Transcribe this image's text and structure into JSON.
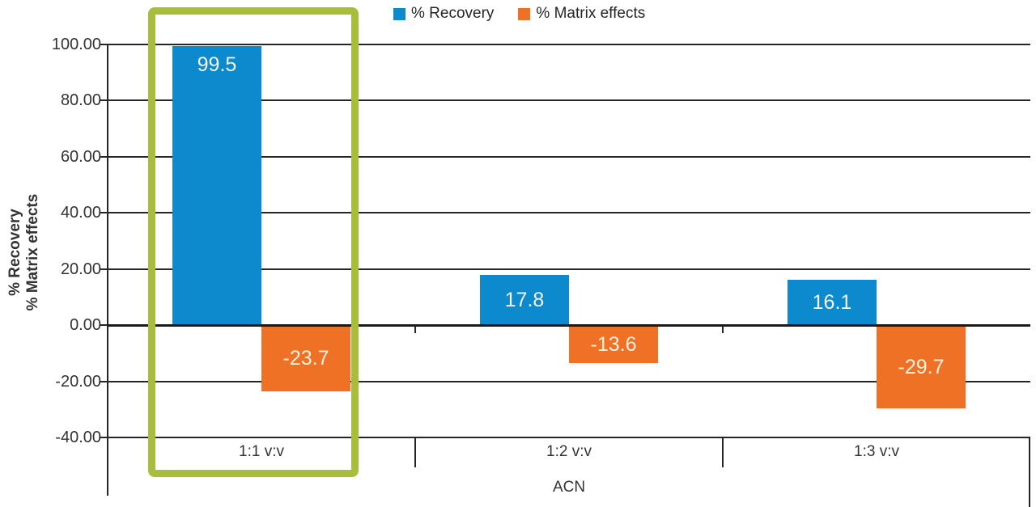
{
  "chart_data": {
    "type": "bar",
    "categories": [
      "1:1 v:v",
      "1:2 v:v",
      "1:3 v:v"
    ],
    "series": [
      {
        "name": "% Recovery",
        "color": "#0d89cd",
        "values": [
          99.5,
          17.8,
          16.1
        ]
      },
      {
        "name": "% Matrix effects",
        "color": "#ef7125",
        "values": [
          -23.7,
          -13.6,
          -29.7
        ]
      }
    ],
    "data_labels": {
      "recovery": [
        "99.5",
        "17.8",
        "16.1"
      ],
      "matrix_effects": [
        "-23.7",
        "-13.6",
        "-29.7"
      ],
      "color": "#f6f2df"
    },
    "xlabel": "ACN",
    "ylabel_lines": [
      "% Recovery",
      "% Matrix effects"
    ],
    "ylim": [
      -40,
      100
    ],
    "ytick_step": 20,
    "ytick_labels": [
      "100.00",
      "80.00",
      "60.00",
      "40.00",
      "20.00",
      "0.00",
      "-20.00",
      "-40.00"
    ],
    "grid": true,
    "legend_position": "top-center",
    "annotations": {
      "highlight_box_category": "1:1 v:v",
      "highlight_color": "#a9bd3d"
    }
  },
  "legend": {
    "items": [
      {
        "label": "% Recovery",
        "color": "#0d89cd"
      },
      {
        "label": "% Matrix effects",
        "color": "#ef7125"
      }
    ]
  }
}
